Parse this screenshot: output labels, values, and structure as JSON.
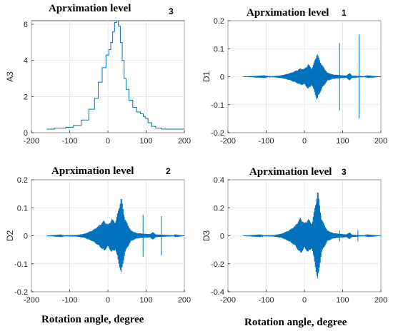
{
  "chart_data": [
    {
      "type": "line",
      "title": "Aprximation level",
      "title_number": "3",
      "ylabel": "A3",
      "xlabel": "",
      "xlim": [
        -200,
        200
      ],
      "ylim": [
        0,
        6.2
      ],
      "xticks": [
        "-200",
        "-100",
        "0",
        "100",
        "200"
      ],
      "yticks": [
        "0",
        "2",
        "4",
        "6"
      ],
      "ytick_values": [
        0,
        2,
        4,
        6
      ],
      "grid": true,
      "color": "#0072BD",
      "shape": "approximation",
      "x": [
        -160,
        -120,
        -100,
        -80,
        -60,
        -40,
        -30,
        -20,
        -10,
        0,
        5,
        10,
        15,
        20,
        25,
        30,
        35,
        40,
        45,
        50,
        60,
        70,
        80,
        90,
        95,
        100,
        110,
        120,
        130,
        150,
        200
      ],
      "y": [
        0.2,
        0.25,
        0.3,
        0.4,
        0.7,
        1.3,
        1.9,
        2.8,
        3.6,
        4.3,
        4.6,
        5.0,
        5.6,
        6.1,
        6.2,
        5.9,
        5.0,
        4.0,
        3.0,
        2.4,
        1.8,
        1.4,
        1.15,
        1.05,
        0.9,
        0.8,
        0.55,
        0.35,
        0.25,
        0.2,
        0.2
      ]
    },
    {
      "type": "line",
      "title": "Aprximation level",
      "title_number": "1",
      "ylabel": "D1",
      "xlabel": "",
      "xlim": [
        -200,
        200
      ],
      "ylim": [
        -0.2,
        0.2
      ],
      "xticks": [
        "-200",
        "-100",
        "0",
        "100",
        "200"
      ],
      "yticks": [
        "-0.2",
        "-0.1",
        "0",
        "0.1",
        "0.2"
      ],
      "ytick_values": [
        -0.2,
        -0.1,
        0,
        0.1,
        0.2
      ],
      "grid": true,
      "color": "#0072BD",
      "shape": "detail",
      "x_range": [
        -160,
        200
      ],
      "envelope": [
        {
          "x": -160,
          "a": 0.0
        },
        {
          "x": -80,
          "a": 0.002
        },
        {
          "x": -60,
          "a": 0.005
        },
        {
          "x": -40,
          "a": 0.012
        },
        {
          "x": -25,
          "a": 0.02
        },
        {
          "x": -10,
          "a": 0.03
        },
        {
          "x": 0,
          "a": 0.028
        },
        {
          "x": 10,
          "a": 0.045
        },
        {
          "x": 20,
          "a": 0.03
        },
        {
          "x": 33,
          "a": 0.085
        },
        {
          "x": 45,
          "a": 0.045
        },
        {
          "x": 60,
          "a": 0.015
        },
        {
          "x": 75,
          "a": 0.008
        },
        {
          "x": 90,
          "a": 0.006
        },
        {
          "x": 110,
          "a": 0.004
        },
        {
          "x": 118,
          "a": 0.014
        },
        {
          "x": 125,
          "a": 0.004
        },
        {
          "x": 150,
          "a": 0.002
        },
        {
          "x": 200,
          "a": 0.0
        }
      ],
      "spikes": [
        {
          "x": 92,
          "top": 0.12,
          "bottom": -0.12
        },
        {
          "x": 143,
          "top": 0.15,
          "bottom": -0.15
        }
      ]
    },
    {
      "type": "line",
      "title": "Aprximation level",
      "title_number": "2",
      "ylabel": "D2",
      "xlabel": "Rotation angle, degree",
      "xlim": [
        -200,
        200
      ],
      "ylim": [
        -0.2,
        0.2
      ],
      "xticks": [
        "-200",
        "-100",
        "0",
        "100",
        "200"
      ],
      "yticks": [
        "-0.2",
        "-0.1",
        "0",
        "0.1",
        "0.2"
      ],
      "ytick_values": [
        -0.2,
        -0.1,
        0,
        0.1,
        0.2
      ],
      "grid": true,
      "color": "#0072BD",
      "shape": "detail",
      "x_range": [
        -160,
        200
      ],
      "envelope": [
        {
          "x": -160,
          "a": 0.0
        },
        {
          "x": -80,
          "a": 0.003
        },
        {
          "x": -60,
          "a": 0.008
        },
        {
          "x": -40,
          "a": 0.02
        },
        {
          "x": -25,
          "a": 0.035
        },
        {
          "x": -10,
          "a": 0.055
        },
        {
          "x": 0,
          "a": 0.04
        },
        {
          "x": 10,
          "a": 0.06
        },
        {
          "x": 20,
          "a": 0.05
        },
        {
          "x": 35,
          "a": 0.14
        },
        {
          "x": 45,
          "a": 0.06
        },
        {
          "x": 60,
          "a": 0.02
        },
        {
          "x": 75,
          "a": 0.01
        },
        {
          "x": 90,
          "a": 0.008
        },
        {
          "x": 110,
          "a": 0.006
        },
        {
          "x": 118,
          "a": 0.014
        },
        {
          "x": 125,
          "a": 0.005
        },
        {
          "x": 150,
          "a": 0.003
        },
        {
          "x": 200,
          "a": 0.0
        }
      ],
      "spikes": [
        {
          "x": 92,
          "top": 0.075,
          "bottom": -0.075
        },
        {
          "x": 140,
          "top": 0.07,
          "bottom": -0.07
        }
      ]
    },
    {
      "type": "line",
      "title": "Aprximation level",
      "title_number": "3",
      "ylabel": "D3",
      "xlabel": "Rotation angle, degree",
      "xlim": [
        -200,
        200
      ],
      "ylim": [
        -0.4,
        0.4
      ],
      "xticks": [
        "-200",
        "-100",
        "0",
        "100",
        "200"
      ],
      "yticks": [
        "-0.4",
        "-0.2",
        "0",
        "0.2",
        "0.4"
      ],
      "ytick_values": [
        -0.4,
        -0.2,
        0,
        0.2,
        0.4
      ],
      "grid": true,
      "color": "#0072BD",
      "shape": "detail",
      "x_range": [
        -160,
        200
      ],
      "envelope": [
        {
          "x": -160,
          "a": 0.0
        },
        {
          "x": -80,
          "a": 0.005
        },
        {
          "x": -60,
          "a": 0.015
        },
        {
          "x": -40,
          "a": 0.04
        },
        {
          "x": -25,
          "a": 0.07
        },
        {
          "x": -10,
          "a": 0.13
        },
        {
          "x": 0,
          "a": 0.09
        },
        {
          "x": 10,
          "a": 0.12
        },
        {
          "x": 20,
          "a": 0.09
        },
        {
          "x": 35,
          "a": 0.33
        },
        {
          "x": 45,
          "a": 0.12
        },
        {
          "x": 60,
          "a": 0.04
        },
        {
          "x": 75,
          "a": 0.02
        },
        {
          "x": 90,
          "a": 0.015
        },
        {
          "x": 110,
          "a": 0.01
        },
        {
          "x": 118,
          "a": 0.025
        },
        {
          "x": 125,
          "a": 0.008
        },
        {
          "x": 150,
          "a": 0.004
        },
        {
          "x": 200,
          "a": 0.0
        }
      ],
      "spikes": [
        {
          "x": 92,
          "top": 0.04,
          "bottom": -0.04
        },
        {
          "x": 140,
          "top": 0.04,
          "bottom": -0.04
        }
      ]
    }
  ]
}
